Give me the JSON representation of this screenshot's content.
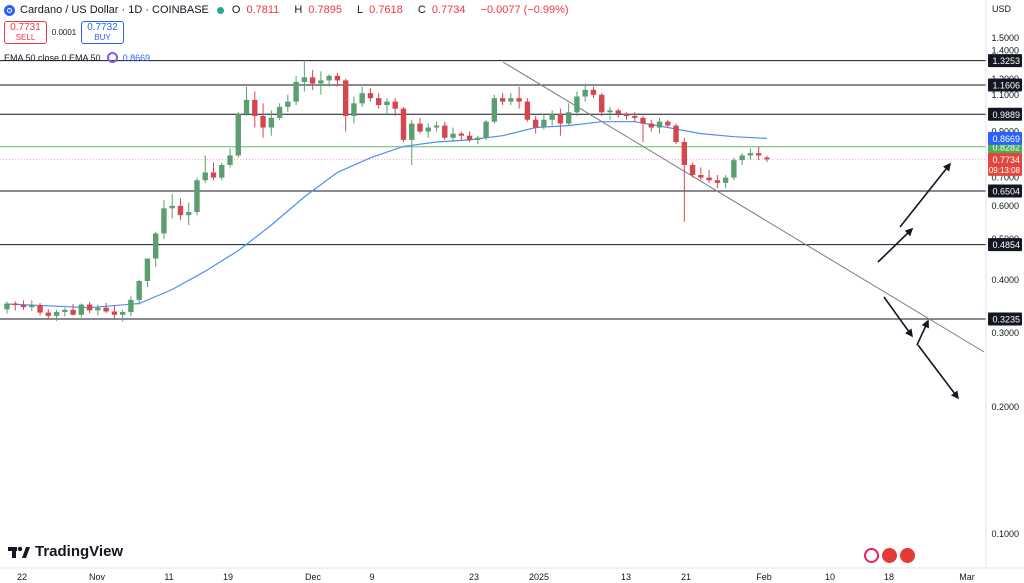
{
  "header": {
    "title": "Cardano / US Dollar · 1D · COINBASE",
    "ohlc": [
      {
        "k": "O",
        "v": "0.7811"
      },
      {
        "k": "H",
        "v": "0.7895"
      },
      {
        "k": "L",
        "v": "0.7618"
      },
      {
        "k": "C",
        "v": "0.7734"
      },
      {
        "k": "",
        "v": "−0.0077 (−0.99%)"
      }
    ]
  },
  "trade": {
    "sell_price": "0.7731",
    "sell_label": "SELL",
    "spread": "0.0001",
    "buy_price": "0.7732",
    "buy_label": "BUY"
  },
  "indicator": {
    "label": "EMA 50 close 0 EMA 50",
    "value": "0.8669"
  },
  "axis": {
    "currency": "USD"
  },
  "brand": {
    "name": "TradingView"
  },
  "colors": {
    "up": "#26a69a",
    "up_fill": "#5c9e72",
    "down": "#d4474e",
    "ema": "#4e8ff7",
    "level_line": "#131722",
    "ema_label_bg": "#2962ff",
    "green_level": "#4caf50",
    "price_label_bg": "#e0473f"
  },
  "icons": [
    "cardano-logo-icon",
    "indicator-settings-icon",
    "lightning-icon",
    "flag-icon"
  ],
  "chart_data": {
    "type": "candlestick",
    "y_scale": "log",
    "yaxis_ticks": [
      "1.5000",
      "1.4000",
      "1.3000",
      "1.2000",
      "1.1000",
      "1.0000",
      "0.9000",
      "0.8000",
      "0.7000",
      "0.6000",
      "0.5000",
      "0.4000",
      "0.3000",
      "0.2000",
      "0.1000"
    ],
    "ylim": [
      0.086,
      1.7
    ],
    "xaxis_ticks": [
      "22",
      "Nov",
      "11",
      "19",
      "Dec",
      "9",
      "23",
      "2025",
      "13",
      "21",
      "Feb",
      "10",
      "18",
      "Mar"
    ],
    "horizontal_levels": [
      "1.3253",
      "1.1606",
      "0.9889",
      "0.8282",
      "0.6504",
      "0.4854",
      "0.3235"
    ],
    "ema_value_label": "0.8669",
    "last_price_label": "0.7734",
    "countdown_label": "09:13:08",
    "candles": [
      [
        0.341,
        0.356,
        0.333,
        0.352
      ],
      [
        0.352,
        0.356,
        0.339,
        0.349
      ],
      [
        0.349,
        0.358,
        0.34,
        0.345
      ],
      [
        0.345,
        0.358,
        0.338,
        0.349
      ],
      [
        0.349,
        0.353,
        0.33,
        0.335
      ],
      [
        0.335,
        0.341,
        0.322,
        0.329
      ],
      [
        0.329,
        0.34,
        0.32,
        0.336
      ],
      [
        0.336,
        0.344,
        0.328,
        0.34
      ],
      [
        0.34,
        0.351,
        0.33,
        0.331
      ],
      [
        0.331,
        0.352,
        0.326,
        0.35
      ],
      [
        0.35,
        0.355,
        0.334,
        0.339
      ],
      [
        0.339,
        0.35,
        0.33,
        0.344
      ],
      [
        0.344,
        0.353,
        0.334,
        0.337
      ],
      [
        0.337,
        0.349,
        0.325,
        0.331
      ],
      [
        0.331,
        0.34,
        0.319,
        0.336
      ],
      [
        0.336,
        0.366,
        0.328,
        0.359
      ],
      [
        0.359,
        0.4,
        0.35,
        0.398
      ],
      [
        0.398,
        0.45,
        0.385,
        0.45
      ],
      [
        0.45,
        0.52,
        0.43,
        0.516
      ],
      [
        0.516,
        0.62,
        0.5,
        0.592
      ],
      [
        0.592,
        0.64,
        0.56,
        0.6
      ],
      [
        0.6,
        0.625,
        0.555,
        0.57
      ],
      [
        0.57,
        0.61,
        0.54,
        0.58
      ],
      [
        0.58,
        0.7,
        0.57,
        0.69
      ],
      [
        0.69,
        0.79,
        0.68,
        0.72
      ],
      [
        0.72,
        0.76,
        0.69,
        0.7
      ],
      [
        0.7,
        0.76,
        0.69,
        0.75
      ],
      [
        0.75,
        0.82,
        0.74,
        0.79
      ],
      [
        0.79,
        1.0,
        0.78,
        0.99
      ],
      [
        0.99,
        1.15,
        0.98,
        1.07
      ],
      [
        1.07,
        1.12,
        0.92,
        0.98
      ],
      [
        0.98,
        1.05,
        0.87,
        0.92
      ],
      [
        0.92,
        1.01,
        0.88,
        0.97
      ],
      [
        0.97,
        1.05,
        0.96,
        1.03
      ],
      [
        1.03,
        1.1,
        1.0,
        1.06
      ],
      [
        1.06,
        1.22,
        1.04,
        1.18
      ],
      [
        1.18,
        1.33,
        1.12,
        1.21
      ],
      [
        1.21,
        1.26,
        1.13,
        1.17
      ],
      [
        1.17,
        1.25,
        1.1,
        1.19
      ],
      [
        1.19,
        1.23,
        1.15,
        1.22
      ],
      [
        1.22,
        1.24,
        1.15,
        1.19
      ],
      [
        1.19,
        1.2,
        0.9,
        0.98
      ],
      [
        0.98,
        1.09,
        0.94,
        1.05
      ],
      [
        1.05,
        1.15,
        1.03,
        1.11
      ],
      [
        1.11,
        1.14,
        1.06,
        1.08
      ],
      [
        1.08,
        1.11,
        1.02,
        1.04
      ],
      [
        1.04,
        1.08,
        0.99,
        1.06
      ],
      [
        1.06,
        1.08,
        0.98,
        1.02
      ],
      [
        1.02,
        1.03,
        0.85,
        0.86
      ],
      [
        0.86,
        0.96,
        0.75,
        0.94
      ],
      [
        0.94,
        0.97,
        0.89,
        0.9
      ],
      [
        0.9,
        0.94,
        0.87,
        0.92
      ],
      [
        0.92,
        0.95,
        0.9,
        0.93
      ],
      [
        0.93,
        0.95,
        0.86,
        0.87
      ],
      [
        0.87,
        0.92,
        0.85,
        0.89
      ],
      [
        0.89,
        0.9,
        0.86,
        0.88
      ],
      [
        0.88,
        0.9,
        0.85,
        0.86
      ],
      [
        0.86,
        0.88,
        0.84,
        0.87
      ],
      [
        0.87,
        0.96,
        0.86,
        0.95
      ],
      [
        0.95,
        1.1,
        0.94,
        1.08
      ],
      [
        1.08,
        1.11,
        1.04,
        1.06
      ],
      [
        1.06,
        1.11,
        1.04,
        1.08
      ],
      [
        1.08,
        1.15,
        1.02,
        1.06
      ],
      [
        1.06,
        1.08,
        0.95,
        0.96
      ],
      [
        0.96,
        0.98,
        0.89,
        0.92
      ],
      [
        0.92,
        0.99,
        0.91,
        0.96
      ],
      [
        0.96,
        1.01,
        0.93,
        0.99
      ],
      [
        0.99,
        1.02,
        0.88,
        0.94
      ],
      [
        0.94,
        1.05,
        0.93,
        1.0
      ],
      [
        1.0,
        1.12,
        0.98,
        1.09
      ],
      [
        1.09,
        1.17,
        1.06,
        1.13
      ],
      [
        1.13,
        1.15,
        1.08,
        1.1
      ],
      [
        1.1,
        1.11,
        0.98,
        1.0
      ],
      [
        1.0,
        1.03,
        0.96,
        1.01
      ],
      [
        1.01,
        1.02,
        0.97,
        0.99
      ],
      [
        0.99,
        1.0,
        0.96,
        0.98
      ],
      [
        0.98,
        1.0,
        0.95,
        0.97
      ],
      [
        0.97,
        0.98,
        0.85,
        0.94
      ],
      [
        0.94,
        0.96,
        0.9,
        0.92
      ],
      [
        0.92,
        0.97,
        0.89,
        0.95
      ],
      [
        0.95,
        0.96,
        0.92,
        0.93
      ],
      [
        0.93,
        0.94,
        0.84,
        0.85
      ],
      [
        0.85,
        0.87,
        0.55,
        0.75
      ],
      [
        0.75,
        0.76,
        0.7,
        0.71
      ],
      [
        0.71,
        0.74,
        0.69,
        0.7
      ],
      [
        0.7,
        0.73,
        0.68,
        0.69
      ],
      [
        0.69,
        0.71,
        0.66,
        0.68
      ],
      [
        0.68,
        0.71,
        0.66,
        0.7
      ],
      [
        0.7,
        0.78,
        0.69,
        0.77
      ],
      [
        0.77,
        0.8,
        0.75,
        0.79
      ],
      [
        0.79,
        0.82,
        0.77,
        0.8
      ],
      [
        0.8,
        0.83,
        0.77,
        0.79
      ],
      [
        0.781,
        0.7895,
        0.7618,
        0.7734
      ]
    ],
    "ema50": [
      [
        0,
        0.351
      ],
      [
        10,
        0.344
      ],
      [
        16,
        0.352
      ],
      [
        20,
        0.38
      ],
      [
        24,
        0.42
      ],
      [
        28,
        0.47
      ],
      [
        32,
        0.54
      ],
      [
        36,
        0.63
      ],
      [
        40,
        0.72
      ],
      [
        44,
        0.78
      ],
      [
        48,
        0.83
      ],
      [
        52,
        0.85
      ],
      [
        56,
        0.86
      ],
      [
        60,
        0.88
      ],
      [
        64,
        0.92
      ],
      [
        68,
        0.93
      ],
      [
        72,
        0.95
      ],
      [
        76,
        0.95
      ],
      [
        80,
        0.92
      ],
      [
        84,
        0.89
      ],
      [
        88,
        0.875
      ],
      [
        92,
        0.8669
      ]
    ]
  }
}
